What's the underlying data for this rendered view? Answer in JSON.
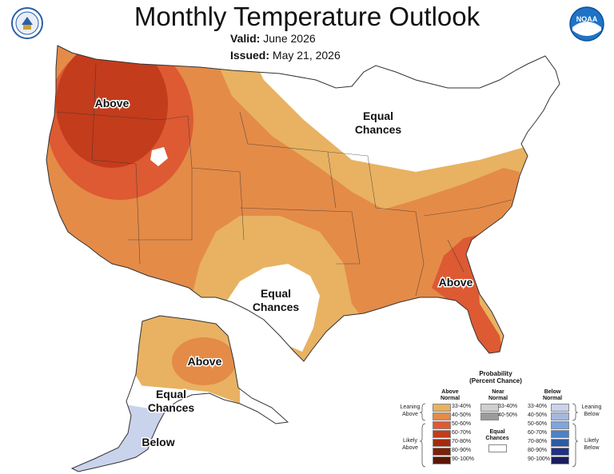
{
  "header": {
    "title": "Monthly Temperature Outlook",
    "valid_label": "Valid:",
    "valid_value": "June 2026",
    "issued_label": "Issued:",
    "issued_value": "May 21, 2026"
  },
  "logos": {
    "left_icon": "doc-seal-icon",
    "right_label": "NOAA"
  },
  "map": {
    "region_labels": {
      "above_nw": "Above",
      "equal_ne": [
        "Equal",
        "Chances"
      ],
      "equal_sw": [
        "Equal",
        "Chances"
      ],
      "above_se": "Above",
      "above_ak": "Above",
      "equal_ak": [
        "Equal",
        "Chances"
      ],
      "below_ak": "Below"
    },
    "colors": {
      "lean_above": "#e8b262",
      "above_40_50": "#e48b48",
      "above_50_60": "#dd5a33",
      "above_60_70": "#c33c1c",
      "equal": "#ffffff",
      "lean_below": "#c9d3ec"
    }
  },
  "legend": {
    "title": "Probability",
    "subtitle": "(Percent Chance)",
    "cols": {
      "above": [
        "Above",
        "Normal"
      ],
      "near": [
        "Near",
        "Normal"
      ],
      "below": [
        "Below",
        "Normal"
      ]
    },
    "above_items": [
      {
        "label": "33-40%",
        "color": "#e8b262"
      },
      {
        "label": "40-50%",
        "color": "#e48b48"
      },
      {
        "label": "50-60%",
        "color": "#dd5a33"
      },
      {
        "label": "60-70%",
        "color": "#c33c1c"
      },
      {
        "label": "70-80%",
        "color": "#a52a0d"
      },
      {
        "label": "80-90%",
        "color": "#7e1f06"
      },
      {
        "label": "90-100%",
        "color": "#5a1603"
      }
    ],
    "near_items": [
      {
        "label": "33-40%",
        "color": "#cfcfcf"
      },
      {
        "label": "40-50%",
        "color": "#9b9b9b"
      }
    ],
    "below_items": [
      {
        "label": "33-40%",
        "color": "#c9d3ec"
      },
      {
        "label": "40-50%",
        "color": "#a4b8e2"
      },
      {
        "label": "50-60%",
        "color": "#7ea5dc"
      },
      {
        "label": "60-70%",
        "color": "#4d82c7"
      },
      {
        "label": "70-80%",
        "color": "#2d5aa7"
      },
      {
        "label": "80-90%",
        "color": "#1f3180"
      },
      {
        "label": "90-100%",
        "color": "#1a1d5e"
      }
    ],
    "equal_chances": [
      "Equal",
      "Chances"
    ],
    "side_left": {
      "leaning": [
        "Leaning",
        "Above"
      ],
      "likely": [
        "Likely",
        "Above"
      ]
    },
    "side_right": {
      "leaning": [
        "Leaning",
        "Below"
      ],
      "likely": [
        "Likely",
        "Below"
      ]
    }
  }
}
